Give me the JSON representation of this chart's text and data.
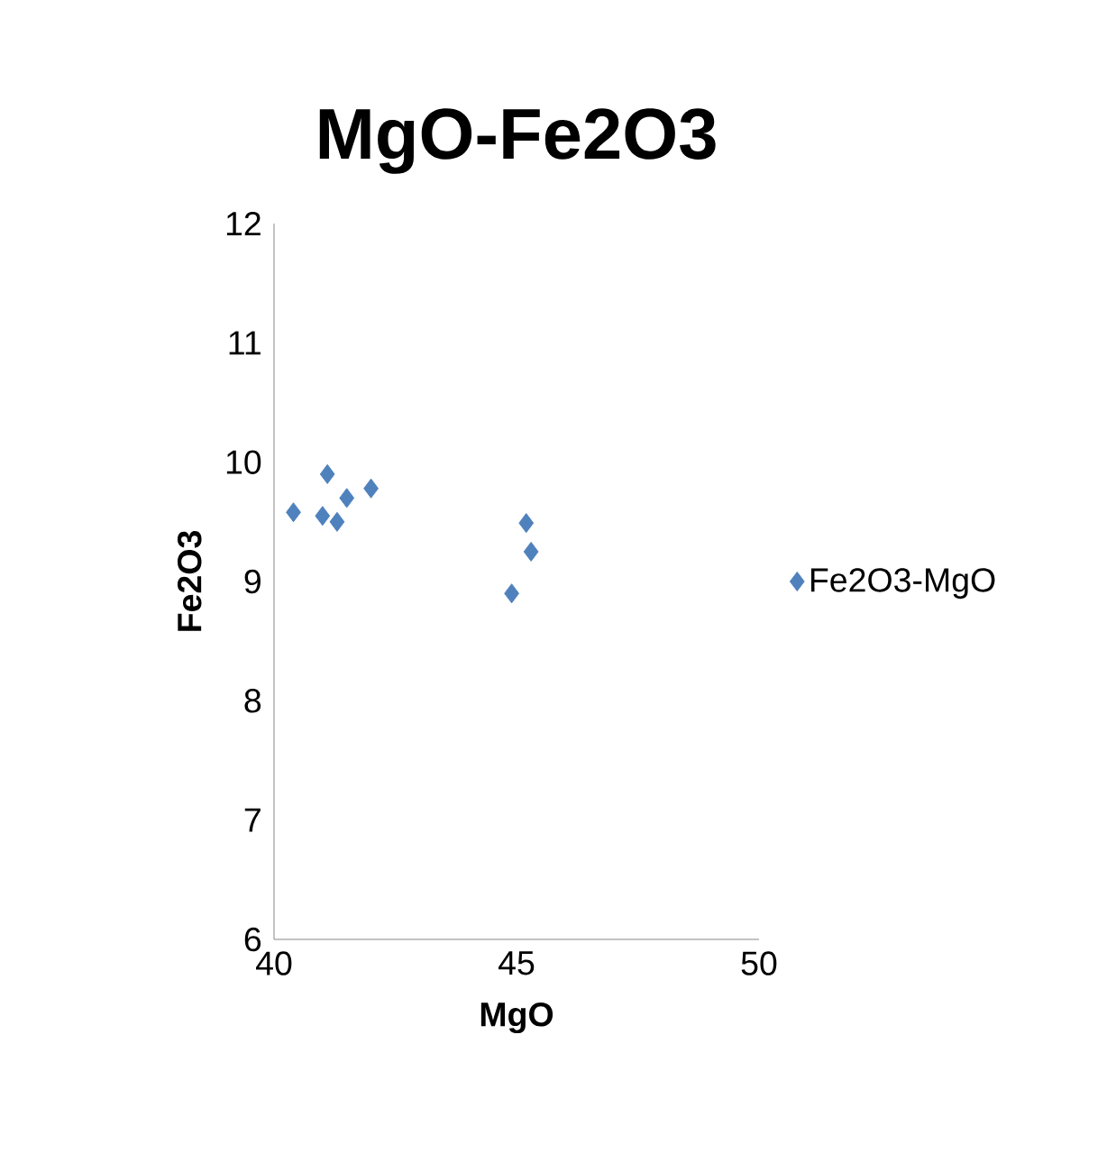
{
  "chart_data": {
    "type": "scatter",
    "title": "MgO-Fe2O3",
    "xlabel": "MgO",
    "ylabel": "Fe2O3",
    "series": [
      {
        "name": "Fe2O3-MgO",
        "color": "#4f81bd",
        "x": [
          40.4,
          41.0,
          41.1,
          41.3,
          41.5,
          42.0,
          45.2,
          45.3,
          44.9
        ],
        "values": [
          9.58,
          9.55,
          9.9,
          9.5,
          9.7,
          9.78,
          9.49,
          9.25,
          8.9
        ]
      }
    ],
    "xlim": [
      40,
      50
    ],
    "xticks": [
      40,
      45,
      50
    ],
    "ylim": [
      6,
      12
    ],
    "yticks": [
      6,
      7,
      8,
      9,
      10,
      11,
      12
    ],
    "legend": "right",
    "marker": "diamond",
    "grid": false
  }
}
